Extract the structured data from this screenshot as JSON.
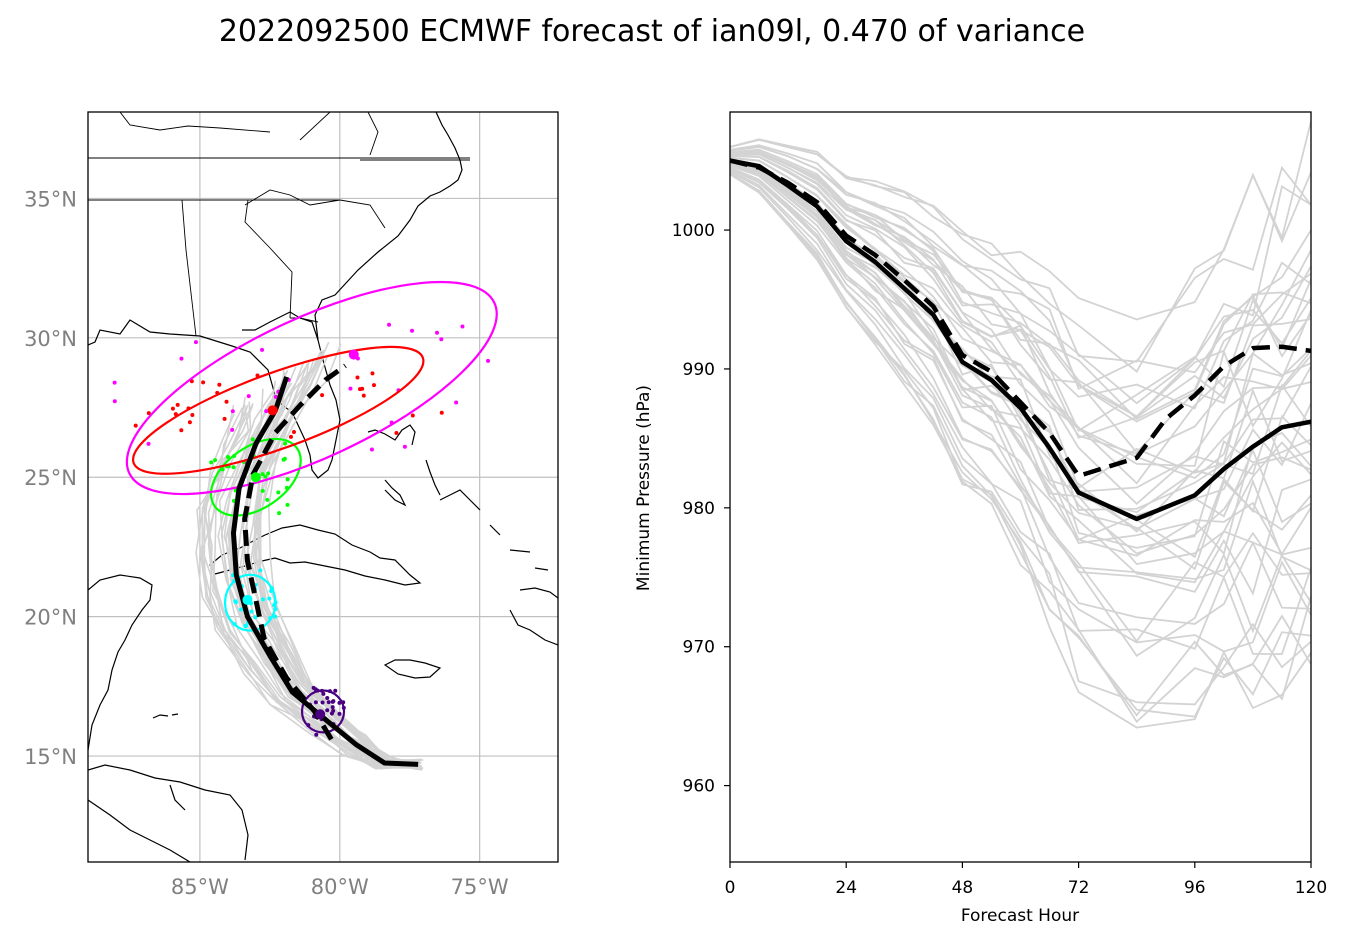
{
  "title": "2022092500 ECMWF forecast of ian09l, 0.470 of variance",
  "colors": {
    "ensemble": "#d3d3d3",
    "mean": "#000000",
    "frame": "#000000",
    "grid": "#c0c0c0",
    "map_tick": "#808080"
  },
  "chart_data": [
    {
      "type": "map",
      "lon_range": [
        -89,
        -72.2
      ],
      "lat_range": [
        11.2,
        38.1
      ],
      "lat_ticks": [
        35,
        30,
        25,
        20,
        15
      ],
      "lat_tick_labels": [
        "35°N",
        "30°N",
        "25°N",
        "20°N",
        "15°N"
      ],
      "lon_ticks": [
        -85,
        -80,
        -75
      ],
      "lon_tick_labels": [
        "85°W",
        "80°W",
        "75°W"
      ],
      "grid": true,
      "series": [
        {
          "style": "solid",
          "points": [
            [
              -77.2,
              14.7
            ],
            [
              -78.4,
              14.75
            ],
            [
              -79.4,
              15.4
            ],
            [
              -80.5,
              16.3
            ],
            [
              -81.7,
              17.3
            ],
            [
              -82.5,
              18.6
            ],
            [
              -83.3,
              20.0
            ],
            [
              -83.7,
              21.5
            ],
            [
              -83.8,
              23.0
            ],
            [
              -83.6,
              24.6
            ],
            [
              -83.0,
              26.2
            ],
            [
              -82.3,
              27.4
            ],
            [
              -81.9,
              28.6
            ]
          ]
        },
        {
          "style": "dashed",
          "points": [
            [
              -80.3,
              15.6
            ],
            [
              -80.9,
              16.6
            ],
            [
              -81.9,
              17.8
            ],
            [
              -82.7,
              19.2
            ],
            [
              -83.0,
              20.6
            ],
            [
              -83.3,
              22.0
            ],
            [
              -83.4,
              23.5
            ],
            [
              -83.1,
              25.1
            ],
            [
              -82.3,
              26.6
            ],
            [
              -81.4,
              27.6
            ],
            [
              -80.5,
              28.5
            ],
            [
              -79.8,
              29.0
            ]
          ]
        }
      ],
      "ellipses": [
        {
          "color": "#4b0082",
          "center": [
            -80.6,
            16.6
          ],
          "rx_deg": 0.75,
          "ry_deg": 0.75
        },
        {
          "color": "#00ffff",
          "center": [
            -83.2,
            20.5
          ],
          "rx_deg": 0.9,
          "ry_deg": 1.0
        },
        {
          "color": "#00ff00",
          "center": [
            -83.0,
            25.0
          ],
          "rx_deg": 1.8,
          "ry_deg": 1.1,
          "angle": -35
        },
        {
          "color": "#ff0000",
          "center": [
            -82.2,
            27.4
          ],
          "rx_deg": 5.5,
          "ry_deg": 1.35,
          "angle": -20
        },
        {
          "color": "#ff00ff",
          "center": [
            -81.0,
            28.2
          ],
          "rx_deg": 7.2,
          "ry_deg": 2.5,
          "angle": -25
        }
      ],
      "markers": [
        {
          "color": "#4b0082",
          "lon": -80.7,
          "lat": 16.5
        },
        {
          "color": "#00ffff",
          "lon": -83.3,
          "lat": 20.6
        },
        {
          "color": "#00ff00",
          "lon": -83.0,
          "lat": 25.0
        },
        {
          "color": "#ff0000",
          "lon": -82.4,
          "lat": 27.4
        },
        {
          "color": "#ff00ff",
          "lon": -79.5,
          "lat": 29.4
        }
      ]
    },
    {
      "type": "line",
      "xlabel": "Forecast Hour",
      "ylabel": "Minimum Pressure (hPa)",
      "xlim": [
        0,
        120
      ],
      "ylim": [
        954.5,
        1008.5
      ],
      "xticks": [
        0,
        24,
        48,
        72,
        96,
        120
      ],
      "yticks": [
        960,
        970,
        980,
        990,
        1000
      ],
      "grid": false,
      "series": [
        {
          "style": "solid",
          "x": [
            0,
            6,
            12,
            18,
            24,
            30,
            36,
            42,
            48,
            54,
            60,
            66,
            72,
            84,
            96,
            102,
            108,
            114,
            120
          ],
          "y": [
            1005,
            1004.6,
            1003.2,
            1001.7,
            999.2,
            997.7,
            995.8,
            993.9,
            990.5,
            989.2,
            987.2,
            984.3,
            981.1,
            979.2,
            980.9,
            982.8,
            984.4,
            985.8,
            986.2
          ]
        },
        {
          "style": "dashed",
          "x": [
            0,
            6,
            12,
            18,
            24,
            30,
            36,
            42,
            48,
            54,
            60,
            66,
            72,
            84,
            90,
            96,
            102,
            108,
            114,
            120
          ],
          "y": [
            1005,
            1004.5,
            1003.4,
            1002.0,
            999.6,
            998.2,
            996.4,
            994.5,
            991.0,
            989.8,
            987.6,
            985.4,
            982.3,
            983.6,
            986.4,
            988.1,
            990.2,
            991.5,
            991.6,
            991.3
          ]
        }
      ]
    }
  ]
}
